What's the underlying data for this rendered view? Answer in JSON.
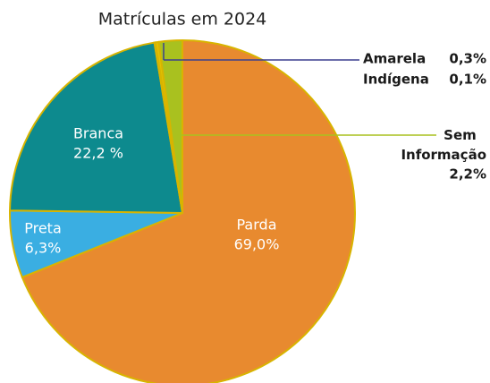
{
  "chart_data": {
    "type": "pie",
    "title": "Matrículas em 2024",
    "categories": [
      "Parda",
      "Preta",
      "Branca",
      "Indígena",
      "Amarela",
      "Sem Informação"
    ],
    "values": [
      69.0,
      6.3,
      22.2,
      0.1,
      0.3,
      2.2
    ],
    "value_labels": [
      "69,0%",
      "6,3%",
      "22,2 %",
      "0,1%",
      "0,3%",
      "2,2%"
    ],
    "colors": [
      "#e88a2f",
      "#3aaee2",
      "#0d8a8e",
      "#5b3f8f",
      "#e2c200",
      "#a9c11f"
    ]
  }
}
